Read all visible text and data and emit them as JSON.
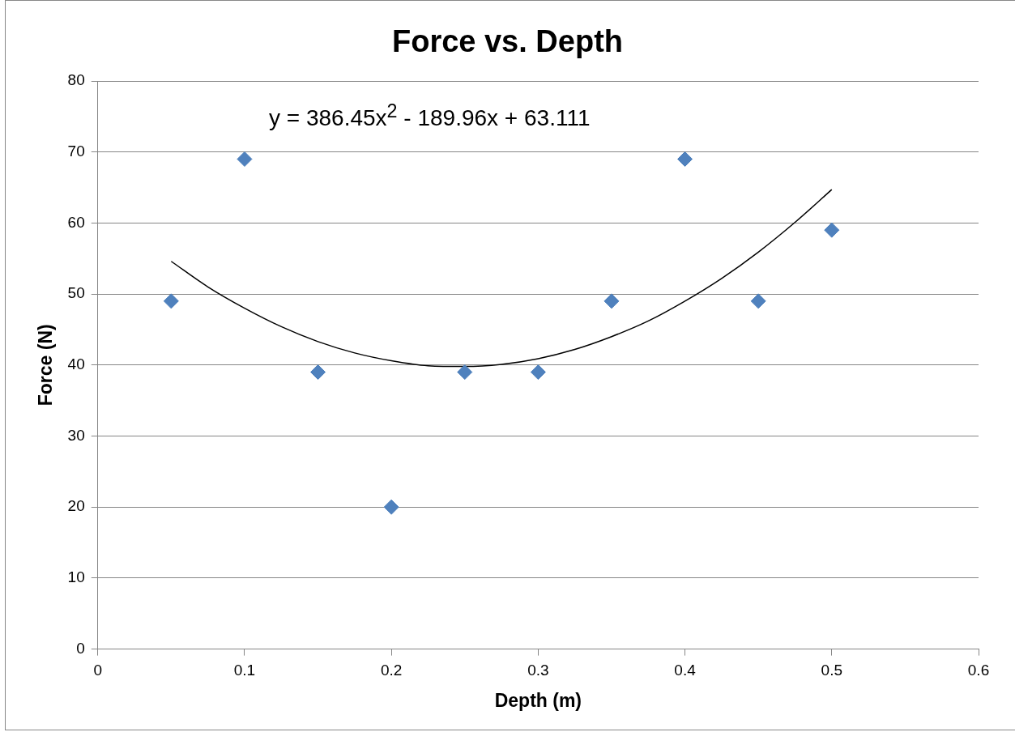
{
  "chart_data": {
    "type": "scatter",
    "title": "Force vs. Depth",
    "xlabel": "Depth (m)",
    "ylabel": "Force (N)",
    "x": [
      0.05,
      0.1,
      0.15,
      0.2,
      0.25,
      0.3,
      0.35,
      0.4,
      0.45,
      0.5
    ],
    "series": [
      {
        "color": "#4f81bd",
        "marker": "diamond",
        "values": [
          49,
          69,
          39,
          20,
          39,
          39,
          49,
          69,
          49,
          59
        ]
      },
      {
        "type": "line",
        "color": "#000000",
        "marker": "none",
        "x": [
          0.05,
          0.075,
          0.1,
          0.125,
          0.15,
          0.175,
          0.2,
          0.225,
          0.25,
          0.275,
          0.3,
          0.325,
          0.35,
          0.375,
          0.4,
          0.425,
          0.45,
          0.475,
          0.5
        ],
        "values": [
          54.6,
          51.0,
          48.0,
          45.4,
          43.3,
          41.7,
          40.6,
          39.9,
          39.8,
          40.1,
          40.9,
          42.2,
          44.0,
          46.2,
          49.0,
          52.2,
          55.9,
          60.1,
          64.7
        ]
      }
    ],
    "annotations": [
      "y = 386.45x$^{2}$ - 189.96x + 63.111"
    ],
    "xlim": [
      0,
      0.6
    ],
    "xticks": [
      0,
      0.1,
      0.2,
      0.3,
      0.4,
      0.5,
      0.6
    ],
    "ylim": [
      0,
      80
    ],
    "yticks": [
      0,
      10,
      20,
      30,
      40,
      50,
      60,
      70,
      80
    ],
    "grid": "y",
    "legend": false
  }
}
